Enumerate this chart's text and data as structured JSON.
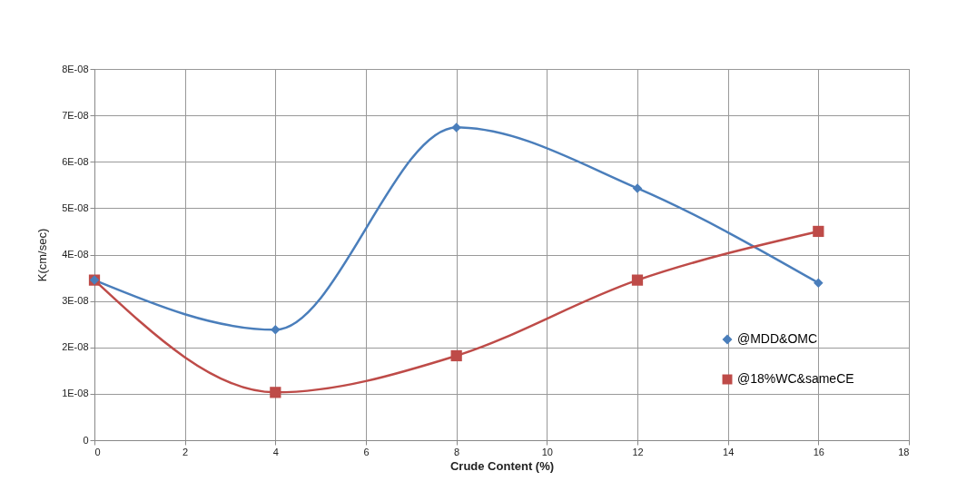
{
  "chart_data": {
    "type": "line",
    "xlabel": "Crude Content (%)",
    "ylabel": "K(cm/sec)",
    "x": [
      0,
      4,
      8,
      12,
      16
    ],
    "series": [
      {
        "name": "@MDD&OMC",
        "color": "#4a7ebb",
        "marker": "diamond",
        "values": [
          3.45e-08,
          2.38e-08,
          6.74e-08,
          5.43e-08,
          3.39e-08
        ]
      },
      {
        "name": "@18%WC&sameCE",
        "color": "#be4b48",
        "marker": "square",
        "values": [
          3.45e-08,
          1.03e-08,
          1.82e-08,
          3.45e-08,
          4.5e-08
        ]
      }
    ],
    "xlim": [
      0,
      18
    ],
    "xticks": [
      0,
      2,
      4,
      6,
      8,
      10,
      12,
      14,
      16,
      18
    ],
    "ylim": [
      0,
      8e-08
    ],
    "yticks": [
      0,
      {
        "value": 1e-08,
        "label": "1E-08"
      },
      {
        "value": 2e-08,
        "label": "2E-08"
      },
      {
        "value": 3e-08,
        "label": "3E-08"
      },
      {
        "value": 4e-08,
        "label": "4E-08"
      },
      {
        "value": 5e-08,
        "label": "5E-08"
      },
      {
        "value": 6e-08,
        "label": "6E-08"
      },
      {
        "value": 7e-08,
        "label": "7E-08"
      },
      {
        "value": 8e-08,
        "label": "8E-08"
      }
    ],
    "grid": true,
    "legend": "bottom right",
    "line_style": "solid"
  }
}
